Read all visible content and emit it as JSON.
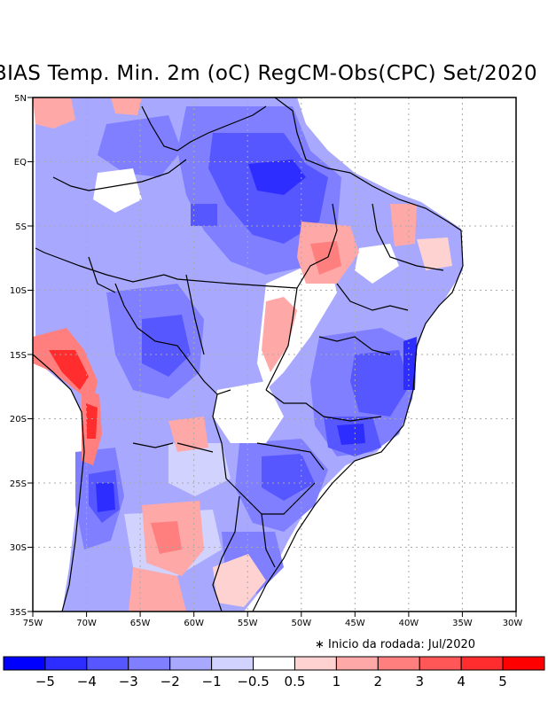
{
  "title": "BIAS Temp. Min. 2m (oC) RegCM-Obs(CPC) Set/2020",
  "note": "∗ Inicio da rodada: Jul/2020",
  "lat_labels": [
    "5N",
    "EQ",
    "5S",
    "10S",
    "15S",
    "20S",
    "25S",
    "30S",
    "35S"
  ],
  "lon_labels": [
    "75W",
    "70W",
    "65W",
    "60W",
    "55W",
    "50W",
    "45W",
    "40W",
    "35W",
    "30W"
  ],
  "map": {
    "lon_range": [
      -75,
      -30
    ],
    "lat_range": [
      -35,
      5
    ],
    "grid": "dotted"
  },
  "colorbar": {
    "colors": [
      "#0000ff",
      "#2d2dff",
      "#5757ff",
      "#7f7fff",
      "#a8a8ff",
      "#d2d2ff",
      "#ffffff",
      "#ffd2d2",
      "#ffa8a8",
      "#ff7f7f",
      "#ff5757",
      "#ff2d2d",
      "#ff0000"
    ],
    "labels": [
      "−5",
      "−4",
      "−3",
      "−2",
      "−1",
      "−0.5",
      "0.5",
      "1",
      "2",
      "3",
      "4",
      "5"
    ]
  }
}
